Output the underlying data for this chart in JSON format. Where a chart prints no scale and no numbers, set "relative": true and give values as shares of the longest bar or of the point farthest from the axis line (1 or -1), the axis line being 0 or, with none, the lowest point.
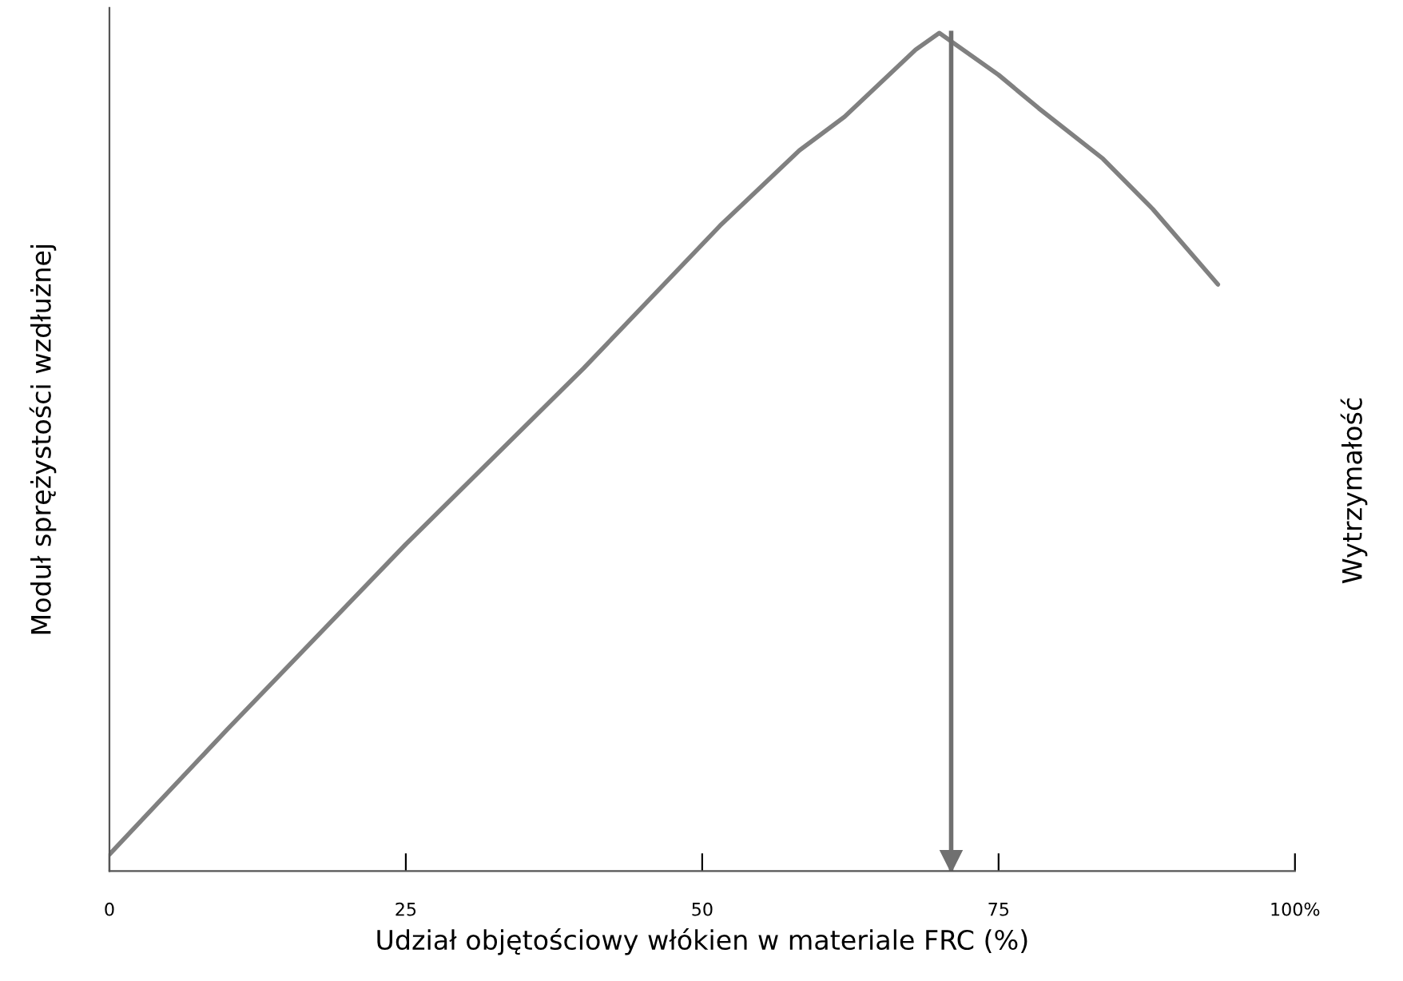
{
  "chart_data": {
    "type": "line",
    "relative": true,
    "xlabel": "Udział objętościowy włókien w materiale FRC (%)",
    "ylabel": "Moduł sprężystości wzdłużnej",
    "y2label": "Wytrzymałość",
    "xlim": [
      0,
      100
    ],
    "xticks": [
      0,
      25,
      50,
      75,
      {
        "value": 100,
        "label": "100%"
      }
    ],
    "series": [
      {
        "color": "#808080",
        "x": [
          0,
          10,
          25,
          40,
          51.5,
          58.2,
          62,
          65,
          68,
          70,
          72,
          75,
          78.4,
          83.8,
          88,
          93.5
        ],
        "values": [
          0.02,
          0.17,
          0.39,
          0.6,
          0.77,
          0.86,
          0.9,
          0.94,
          0.98,
          1,
          0.98,
          0.95,
          0.91,
          0.85,
          0.79,
          0.7
        ]
      }
    ],
    "ref_lines": [
      {
        "axis": "x",
        "value": 71,
        "color": "#707070"
      }
    ],
    "grid": false,
    "legend": false
  }
}
